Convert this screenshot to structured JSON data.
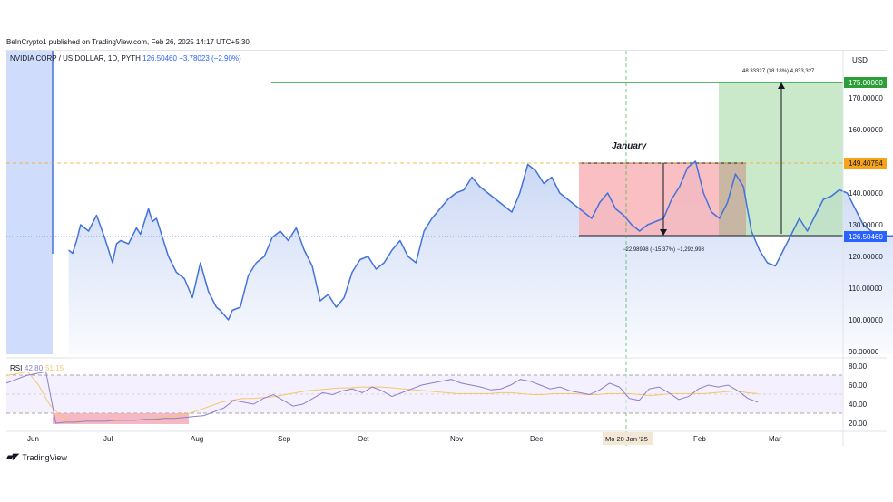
{
  "header": {
    "publisher_line": "BeInCrypto1 published on TradingView.com, Feb 26, 2025 14:17 UTC+5:30"
  },
  "legend": {
    "symbol": "NVIDIA CORP / US DOLLAR, 1D, PYTH",
    "last": "126.50460",
    "change": "−3.78023 (−2.90%)"
  },
  "price_axis": {
    "currency": "USD",
    "ticks": [
      "170.00000",
      "160.00000",
      "140.00000",
      "130.00000",
      "120.00000",
      "110.00000",
      "100.00000",
      "90.00000"
    ],
    "labels": {
      "target": "175.00000",
      "high": "149.40754",
      "current": "126.50460"
    }
  },
  "rsi_axis": {
    "ticks": [
      "80.00",
      "60.00",
      "40.00",
      "20.00"
    ]
  },
  "rsi_legend": {
    "name": "RSI",
    "value": "42.80",
    "ma": "51.15"
  },
  "time_axis": {
    "ticks": [
      "Jun",
      "Jul",
      "Aug",
      "Sep",
      "Oct",
      "Nov",
      "Dec",
      "Feb",
      "Mar"
    ],
    "cursor_label": "Mo 20 Jan '25"
  },
  "annotations": {
    "january_label": "January",
    "measure_down": "−22.98998 (−15.37%) −1,292,998",
    "measure_up": "48.33327 (38.18%) 4,833,327"
  },
  "footer": {
    "brand": "TradingView"
  },
  "colors": {
    "price_line": "#4472dc",
    "target_line": "#2e9e3a",
    "red_zone": "#f8b4b8",
    "green_zone": "#b8e2b8",
    "rsi_line": "#8c7fc9",
    "rsi_ma": "#f5c76a",
    "badge_blue": "#2962ff",
    "badge_orange": "#f7a21b",
    "badge_green": "#2e9e3a"
  },
  "chart_data": {
    "type": "line",
    "title": "NVIDIA CORP / US DOLLAR, 1D, PYTH",
    "xlabel": "",
    "ylabel": "",
    "ylim": [
      87,
      178
    ],
    "grid": false,
    "series": [
      {
        "name": "NVIDIA CORP / US DOLLAR",
        "x_months": [
          5.45,
          5.5,
          5.55,
          5.6,
          5.7,
          5.8,
          5.9,
          6.0,
          6.05,
          6.1,
          6.2,
          6.3,
          6.35,
          6.45,
          6.5,
          6.55,
          6.65,
          6.7,
          6.8,
          6.9,
          7.0,
          7.1,
          7.2,
          7.3,
          7.35,
          7.45,
          7.5,
          7.6,
          7.7,
          7.8,
          7.9,
          8.0,
          8.1,
          8.2,
          8.3,
          8.4,
          8.5,
          8.6,
          8.7,
          8.8,
          8.9,
          9.0,
          9.1,
          9.2,
          9.3,
          9.4,
          9.5,
          9.6,
          9.7,
          9.8,
          9.9,
          10.0,
          10.1,
          10.2,
          10.3,
          10.4,
          10.5,
          10.6,
          10.7,
          10.8,
          10.9,
          11.0,
          11.1,
          11.2,
          11.3,
          11.4,
          11.5,
          11.6,
          11.7,
          11.8,
          11.9,
          12.0,
          12.1,
          12.2,
          12.3,
          12.4,
          12.5,
          12.6,
          12.7,
          12.8,
          12.9,
          13.0,
          13.1,
          13.2,
          13.3,
          13.4,
          13.5,
          13.6,
          13.7,
          13.8,
          13.9,
          14.0,
          14.1,
          14.2,
          14.3,
          14.4,
          14.5,
          14.6,
          14.65,
          14.7,
          14.8,
          14.9,
          15.0,
          15.1,
          15.2,
          15.3,
          15.4,
          15.5,
          15.6,
          15.7,
          15.8
        ],
        "values": [
          122,
          121,
          125,
          130,
          128,
          133,
          126,
          118,
          124,
          125,
          124,
          129,
          127,
          135,
          131,
          132,
          124,
          120,
          115,
          113,
          107,
          118,
          109,
          104,
          103,
          100,
          103,
          104,
          114,
          118,
          120,
          126,
          128,
          125,
          129,
          122,
          117,
          106,
          108,
          104,
          107,
          115,
          119,
          120,
          116,
          118,
          122,
          125,
          120,
          118,
          128,
          132,
          135,
          138,
          140,
          141,
          145,
          142,
          140,
          138,
          136,
          134,
          140,
          149,
          147,
          143,
          145,
          140,
          138,
          136,
          134,
          132,
          137,
          140,
          135,
          133,
          130,
          128,
          130,
          131,
          132,
          138,
          142,
          148,
          150,
          140,
          134,
          132,
          137,
          146,
          142,
          128,
          122,
          118,
          117,
          122,
          127,
          132,
          130,
          128,
          133,
          138,
          139,
          141,
          140,
          135,
          130,
          128,
          127,
          126.5,
          126.5
        ],
        "color": "#4472dc"
      }
    ],
    "x_ticks": [
      "Jun",
      "Jul",
      "Aug",
      "Sep",
      "Oct",
      "Nov",
      "Dec",
      "Feb",
      "Mar"
    ],
    "y_ticks": [
      90,
      100,
      110,
      120,
      130,
      140,
      160,
      170
    ],
    "levels": {
      "target": 175.0,
      "high": 149.40754,
      "current": 126.5046
    },
    "rsi": {
      "name": "RSI",
      "ylim": [
        15,
        85
      ],
      "ticks": [
        20,
        40,
        60,
        80
      ],
      "band": [
        30,
        70
      ],
      "values": [
        62,
        66,
        70,
        72,
        74,
        20,
        21,
        21,
        22,
        22,
        22,
        23,
        23,
        23,
        24,
        24,
        25,
        25,
        26,
        27,
        28,
        32,
        36,
        44,
        42,
        40,
        46,
        50,
        44,
        38,
        40,
        46,
        52,
        50,
        54,
        56,
        52,
        58,
        54,
        48,
        52,
        56,
        60,
        62,
        64,
        66,
        62,
        60,
        58,
        55,
        56,
        60,
        66,
        64,
        60,
        56,
        58,
        54,
        52,
        50,
        55,
        62,
        58,
        46,
        44,
        56,
        58,
        52,
        45,
        48,
        56,
        60,
        58,
        60,
        54,
        46,
        42
      ],
      "ma": [
        70,
        72,
        74,
        60,
        40,
        28,
        23,
        22,
        22,
        22,
        22,
        23,
        23,
        24,
        25,
        26,
        28,
        30,
        34,
        38,
        42,
        44,
        46,
        46,
        47,
        48,
        50,
        52,
        54,
        55,
        56,
        57,
        57,
        58,
        58,
        58,
        57,
        56,
        55,
        54,
        53,
        52,
        51,
        51,
        51,
        51,
        52,
        52,
        51,
        50,
        50,
        51,
        51,
        51,
        50,
        50,
        51,
        51,
        51,
        50,
        49,
        50,
        51,
        51,
        51,
        51,
        52,
        53,
        54,
        52,
        51
      ]
    }
  }
}
